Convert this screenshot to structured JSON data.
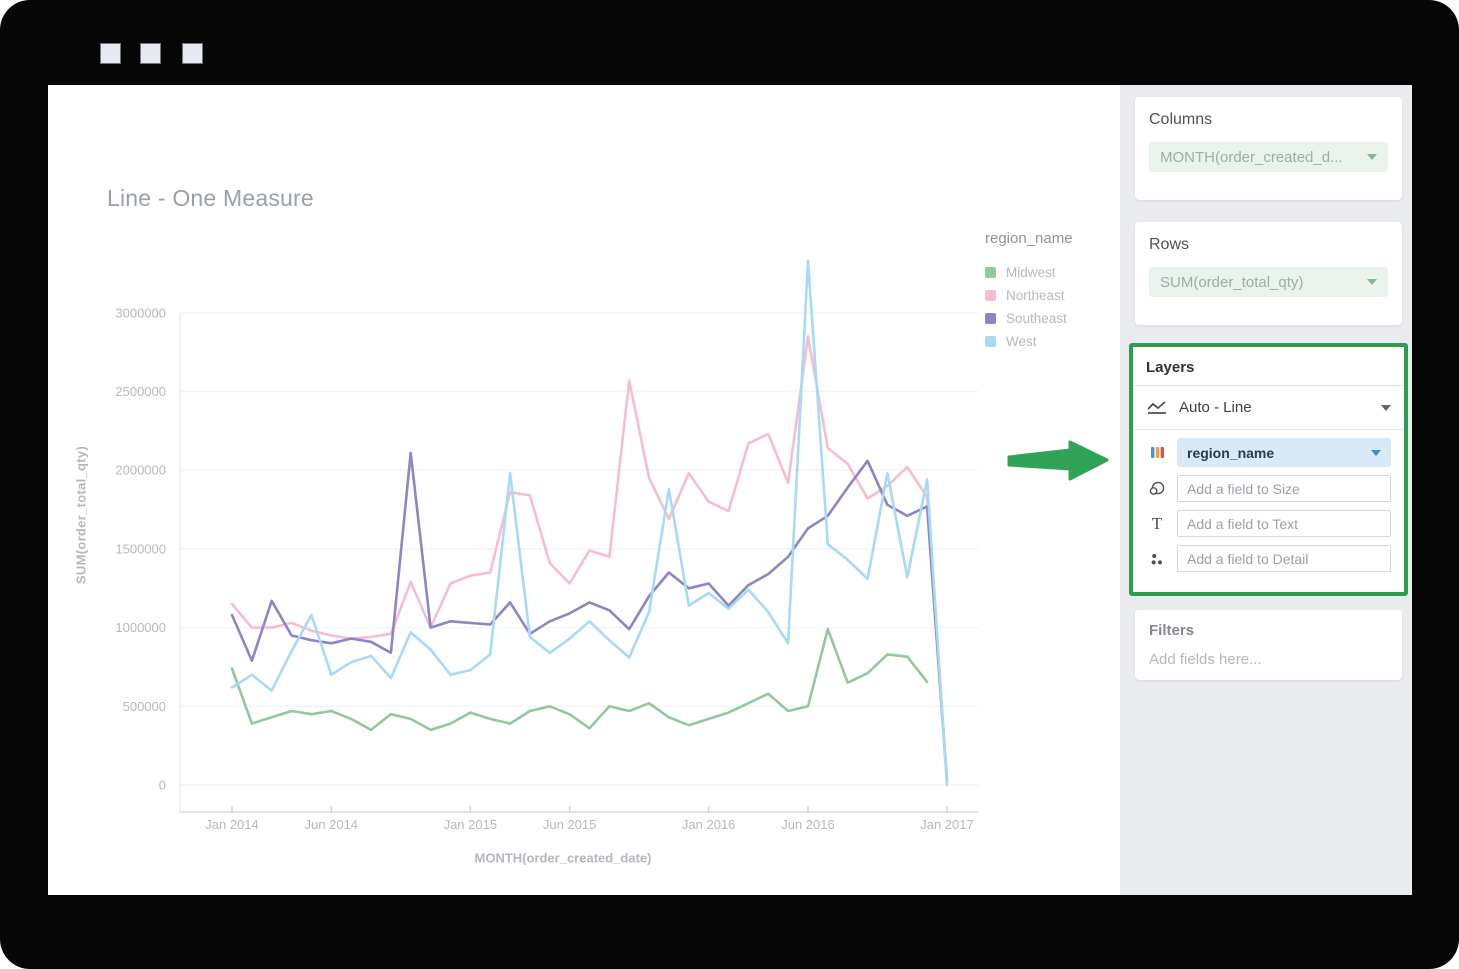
{
  "window": {
    "control_squares": 3
  },
  "chart_data": {
    "type": "line",
    "title": "Line - One Measure",
    "xlabel": "MONTH(order_created_date)",
    "ylabel": "SUM(order_total_qty)",
    "legend_title": "region_name",
    "legend_position": "right",
    "grid": true,
    "ylim": [
      0,
      3350000
    ],
    "y_ticks": [
      0,
      500000,
      1000000,
      1500000,
      2000000,
      2500000,
      3000000
    ],
    "x_ticks": [
      "Jan 2014",
      "Jun 2014",
      "Jan 2015",
      "Jun 2015",
      "Jan 2016",
      "Jun 2016",
      "Jan 2017"
    ],
    "x_tick_month_index": [
      0,
      5,
      12,
      17,
      24,
      29,
      36
    ],
    "months": [
      "Jan 2014",
      "Feb 2014",
      "Mar 2014",
      "Apr 2014",
      "May 2014",
      "Jun 2014",
      "Jul 2014",
      "Aug 2014",
      "Sep 2014",
      "Oct 2014",
      "Nov 2014",
      "Dec 2014",
      "Jan 2015",
      "Feb 2015",
      "Mar 2015",
      "Apr 2015",
      "May 2015",
      "Jun 2015",
      "Jul 2015",
      "Aug 2015",
      "Sep 2015",
      "Oct 2015",
      "Nov 2015",
      "Dec 2015",
      "Jan 2016",
      "Feb 2016",
      "Mar 2016",
      "Apr 2016",
      "May 2016",
      "Jun 2016",
      "Jul 2016",
      "Aug 2016",
      "Sep 2016",
      "Oct 2016",
      "Nov 2016",
      "Dec 2016",
      "Jan 2017"
    ],
    "series": [
      {
        "name": "Midwest",
        "color": "#92c89e",
        "values": [
          740000,
          390000,
          430000,
          470000,
          450000,
          470000,
          420000,
          350000,
          450000,
          420000,
          350000,
          390000,
          460000,
          420000,
          390000,
          470000,
          500000,
          450000,
          360000,
          500000,
          470000,
          520000,
          430000,
          380000,
          420000,
          460000,
          520000,
          580000,
          470000,
          500000,
          990000,
          650000,
          710000,
          830000,
          815000,
          655000,
          null
        ]
      },
      {
        "name": "Northeast",
        "color": "#f7bdcc",
        "values": [
          1150000,
          1000000,
          1000000,
          1030000,
          980000,
          950000,
          930000,
          940000,
          960000,
          1290000,
          1000000,
          1280000,
          1330000,
          1350000,
          1860000,
          1840000,
          1410000,
          1280000,
          1490000,
          1450000,
          2570000,
          1950000,
          1690000,
          1980000,
          1800000,
          1740000,
          2170000,
          2230000,
          1920000,
          2850000,
          2140000,
          2040000,
          1820000,
          1900000,
          2020000,
          1830000,
          30000
        ]
      },
      {
        "name": "Southeast",
        "color": "#8c85c6",
        "values": [
          1080000,
          790000,
          1170000,
          950000,
          920000,
          900000,
          930000,
          910000,
          840000,
          2110000,
          1000000,
          1040000,
          1030000,
          1020000,
          1160000,
          960000,
          1040000,
          1090000,
          1160000,
          1110000,
          990000,
          1200000,
          1350000,
          1250000,
          1280000,
          1140000,
          1270000,
          1340000,
          1450000,
          1630000,
          1710000,
          1890000,
          2060000,
          1780000,
          1710000,
          1770000,
          20000
        ]
      },
      {
        "name": "West",
        "color": "#a7daf5",
        "values": [
          620000,
          700000,
          600000,
          850000,
          1080000,
          700000,
          780000,
          820000,
          680000,
          970000,
          860000,
          700000,
          730000,
          830000,
          1980000,
          940000,
          840000,
          930000,
          1040000,
          920000,
          810000,
          1100000,
          1880000,
          1140000,
          1220000,
          1120000,
          1240000,
          1100000,
          900000,
          3330000,
          1530000,
          1430000,
          1310000,
          1980000,
          1320000,
          1940000,
          0
        ]
      }
    ]
  },
  "sidebar": {
    "columns": {
      "title": "Columns",
      "pill": "MONTH(order_created_d..."
    },
    "rows": {
      "title": "Rows",
      "pill": "SUM(order_total_qty)"
    },
    "layers": {
      "title": "Layers",
      "layer_type": "Auto - Line",
      "color_field": "region_name",
      "size_placeholder": "Add a field to Size",
      "text_placeholder": "Add a field to Text",
      "detail_placeholder": "Add a field to Detail",
      "highlight_color": "#2d9e51"
    },
    "filters": {
      "title": "Filters",
      "placeholder": "Add fields here..."
    }
  },
  "annotation": {
    "arrow_color": "#31a356"
  }
}
